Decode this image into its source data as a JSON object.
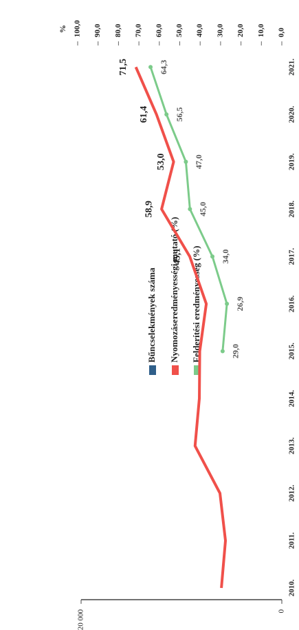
{
  "chart_data": {
    "type": "line",
    "categories": [
      "2010.",
      "2011.",
      "2012.",
      "2013.",
      "2014.",
      "2015.",
      "2016.",
      "2017.",
      "2018.",
      "2019.",
      "2020.",
      "2021."
    ],
    "ylim": [
      0,
      20000
    ],
    "yticks": [
      0,
      {
        "value": 20000,
        "label": "20 000"
      }
    ],
    "y2label": "%",
    "y2lim": [
      0,
      100
    ],
    "y2ticks": [
      {
        "value": 0,
        "label": "0,0"
      },
      {
        "value": 10,
        "label": "10,0"
      },
      {
        "value": 20,
        "label": "20,0"
      },
      {
        "value": 30,
        "label": "30,0"
      },
      {
        "value": 40,
        "label": "40,0"
      },
      {
        "value": 50,
        "label": "50,0"
      },
      {
        "value": 60,
        "label": "60,0"
      },
      {
        "value": 70,
        "label": "70,0"
      },
      {
        "value": 80,
        "label": "80,0"
      },
      {
        "value": 90,
        "label": "90,0"
      },
      {
        "value": 100,
        "label": "100,0"
      }
    ],
    "series": [
      {
        "name": "Bűncselekmények száma",
        "color": "#2f5f8a",
        "values": [
          null,
          null,
          null,
          null,
          null,
          null,
          null,
          null,
          null,
          null,
          null,
          null
        ]
      },
      {
        "name": "Nyomozáseredményességi mutató (%)",
        "color": "#f0504a",
        "axis": "y2",
        "values": [
          29.6,
          27.6,
          30.3,
          42.5,
          40.4,
          40.2,
          37.0,
          45.1,
          58.9,
          53.0,
          61.4,
          71.5
        ],
        "value_labels": [
          null,
          null,
          null,
          null,
          null,
          null,
          null,
          "45,1",
          "58,9",
          "53,0",
          "61,4",
          "71,5"
        ]
      },
      {
        "name": "Felderítési eredményesség (%)",
        "color": "#7ccb8a",
        "axis": "y2",
        "values": [
          null,
          null,
          null,
          null,
          null,
          29.0,
          26.9,
          34.0,
          45.0,
          47.0,
          56.5,
          64.3
        ],
        "value_labels": [
          null,
          null,
          null,
          null,
          null,
          "29,0",
          "26,9",
          "34,0",
          "45,0",
          "47,0",
          "56,5",
          "64,3"
        ]
      }
    ]
  }
}
